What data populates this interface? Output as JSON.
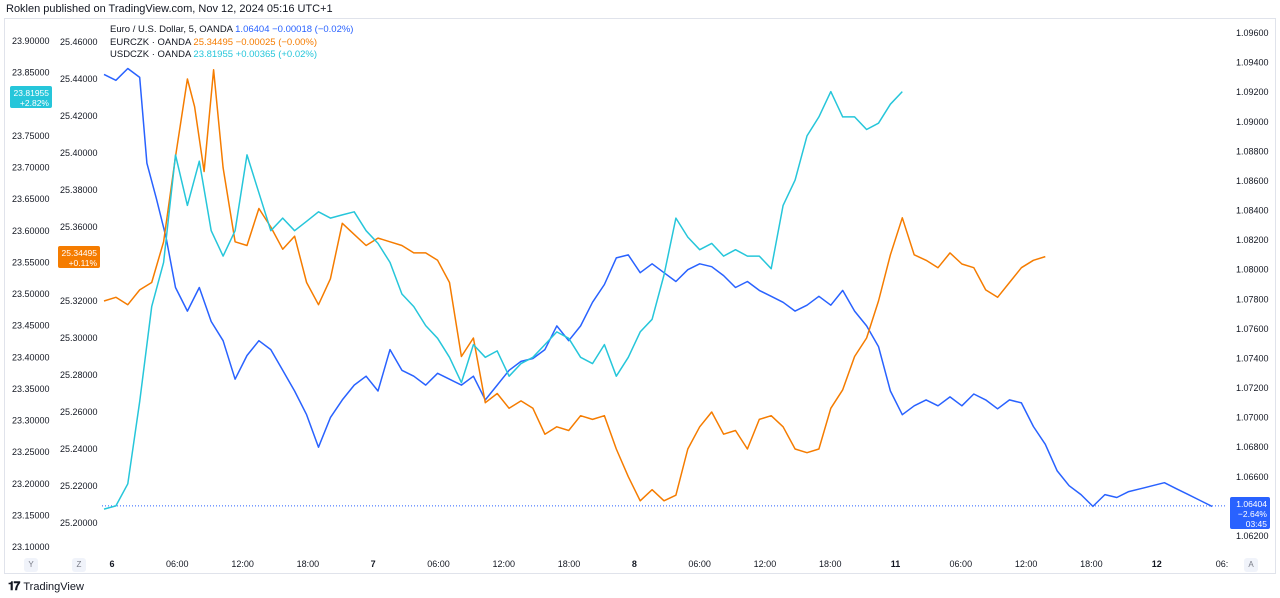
{
  "header": {
    "published": "Roklen published on TradingView.com, Nov 12, 2024 05:16 UTC+1"
  },
  "legend": [
    {
      "name": "Euro / U.S. Dollar, 5, OANDA",
      "last": "1.06404",
      "change": "−0.00018 (−0.02%)",
      "color": "#2962ff"
    },
    {
      "name": "EURCZK · OANDA",
      "last": "25.34495",
      "change": "−0.00025 (−0.00%)",
      "color": "#f57c00"
    },
    {
      "name": "USDCZK · OANDA",
      "last": "23.81955",
      "change": "+0.00365 (+0.02%)",
      "color": "#26c6da"
    }
  ],
  "footer": {
    "logo": "𝟏𝟕",
    "brand": "TradingView"
  },
  "corner_buttons": {
    "left_y": "Y",
    "left_z": "Z",
    "right_a": "A"
  },
  "chart_data": {
    "type": "line",
    "x_tick_labels": [
      "6",
      "06:00",
      "12:00",
      "18:00",
      "7",
      "06:00",
      "12:00",
      "18:00",
      "8",
      "06:00",
      "12:00",
      "18:00",
      "11",
      "06:00",
      "12:00",
      "18:00",
      "12",
      "06:"
    ],
    "axes": {
      "usdczk_scale": {
        "ticks": [
          "23.90000",
          "23.85000",
          "23.80000",
          "23.75000",
          "23.70000",
          "23.65000",
          "23.60000",
          "23.55000",
          "23.50000",
          "23.45000",
          "23.40000",
          "23.35000",
          "23.30000",
          "23.25000",
          "23.20000",
          "23.15000",
          "23.10000"
        ],
        "range": [
          23.1,
          23.9
        ]
      },
      "eurczk_scale": {
        "ticks": [
          "25.46000",
          "25.44000",
          "25.42000",
          "25.40000",
          "25.38000",
          "25.36000",
          "25.34000",
          "25.32000",
          "25.30000",
          "25.28000",
          "25.26000",
          "25.24000",
          "25.22000",
          "25.20000"
        ],
        "range": [
          25.2,
          25.46
        ]
      },
      "eurusd_scale": {
        "ticks": [
          "1.09600",
          "1.09400",
          "1.09200",
          "1.09000",
          "1.08800",
          "1.08600",
          "1.08400",
          "1.08200",
          "1.08000",
          "1.07800",
          "1.07600",
          "1.07400",
          "1.07200",
          "1.07000",
          "1.06800",
          "1.06600",
          "1.06400",
          "1.06200"
        ],
        "range": [
          1.062,
          1.096
        ]
      }
    },
    "price_labels": {
      "usdczk": {
        "value": "23.81955",
        "change": "+2.82%"
      },
      "eurczk": {
        "value": "25.34495",
        "change": "+0.11%"
      },
      "eurusd": {
        "value": "1.06404",
        "change": "−2.64%",
        "countdown": "03:45"
      }
    },
    "series": [
      {
        "name": "EUR/USD",
        "scale": "eurusd_scale",
        "color": "#2962ff",
        "points": [
          [
            0,
            1.0932
          ],
          [
            0.5,
            1.0928
          ],
          [
            1,
            1.0936
          ],
          [
            1.5,
            1.093
          ],
          [
            1.8,
            1.0872
          ],
          [
            2.2,
            1.0848
          ],
          [
            2.6,
            1.0822
          ],
          [
            3,
            1.0788
          ],
          [
            3.5,
            1.0772
          ],
          [
            4,
            1.0788
          ],
          [
            4.5,
            1.0765
          ],
          [
            5,
            1.0752
          ],
          [
            5.5,
            1.0726
          ],
          [
            6,
            1.0742
          ],
          [
            6.5,
            1.0752
          ],
          [
            7,
            1.0746
          ],
          [
            7.5,
            1.0732
          ],
          [
            8,
            1.0718
          ],
          [
            8.5,
            1.0702
          ],
          [
            9,
            1.068
          ],
          [
            9.5,
            1.07
          ],
          [
            10,
            1.0712
          ],
          [
            10.5,
            1.0722
          ],
          [
            11,
            1.0728
          ],
          [
            11.5,
            1.0718
          ],
          [
            12,
            1.0746
          ],
          [
            12.5,
            1.0732
          ],
          [
            13,
            1.0728
          ],
          [
            13.5,
            1.0722
          ],
          [
            14,
            1.073
          ],
          [
            14.5,
            1.0726
          ],
          [
            15,
            1.0722
          ],
          [
            15.5,
            1.0728
          ],
          [
            16,
            1.0712
          ],
          [
            16.5,
            1.0722
          ],
          [
            17,
            1.0732
          ],
          [
            17.5,
            1.0738
          ],
          [
            18,
            1.074
          ],
          [
            18.5,
            1.0746
          ],
          [
            19,
            1.0762
          ],
          [
            19.5,
            1.0752
          ],
          [
            20,
            1.0762
          ],
          [
            20.5,
            1.0778
          ],
          [
            21,
            1.079
          ],
          [
            21.5,
            1.0808
          ],
          [
            22,
            1.081
          ],
          [
            22.5,
            1.0798
          ],
          [
            23,
            1.0804
          ],
          [
            23.5,
            1.0798
          ],
          [
            24,
            1.0792
          ],
          [
            24.5,
            1.08
          ],
          [
            25,
            1.0804
          ],
          [
            25.5,
            1.0802
          ],
          [
            26,
            1.0796
          ],
          [
            26.5,
            1.0788
          ],
          [
            27,
            1.0792
          ],
          [
            27.5,
            1.0786
          ],
          [
            28,
            1.0782
          ],
          [
            28.5,
            1.0778
          ],
          [
            29,
            1.0772
          ],
          [
            29.5,
            1.0776
          ],
          [
            30,
            1.0782
          ],
          [
            30.5,
            1.0776
          ],
          [
            31,
            1.0786
          ],
          [
            31.5,
            1.0772
          ],
          [
            32,
            1.0762
          ],
          [
            32.5,
            1.0748
          ],
          [
            33,
            1.0718
          ],
          [
            33.5,
            1.0702
          ],
          [
            34,
            1.0708
          ],
          [
            34.5,
            1.0712
          ],
          [
            35,
            1.0708
          ],
          [
            35.5,
            1.0714
          ],
          [
            36,
            1.0708
          ],
          [
            36.5,
            1.0716
          ],
          [
            37,
            1.0712
          ],
          [
            37.5,
            1.0706
          ],
          [
            38,
            1.0712
          ],
          [
            38.5,
            1.071
          ],
          [
            39,
            1.0694
          ],
          [
            39.5,
            1.0682
          ],
          [
            40,
            1.0664
          ],
          [
            40.5,
            1.0654
          ],
          [
            41,
            1.0648
          ],
          [
            41.5,
            1.064
          ],
          [
            42,
            1.0648
          ],
          [
            42.5,
            1.0646
          ],
          [
            43,
            1.065
          ],
          [
            43.5,
            1.0652
          ],
          [
            44,
            1.0654
          ],
          [
            44.5,
            1.0656
          ],
          [
            45,
            1.0652
          ],
          [
            45.5,
            1.0648
          ],
          [
            46,
            1.0644
          ],
          [
            46.5,
            1.064
          ]
        ]
      },
      {
        "name": "EURCZK",
        "scale": "eurczk_scale",
        "color": "#f57c00",
        "points": [
          [
            0,
            25.32
          ],
          [
            0.5,
            25.322
          ],
          [
            1,
            25.318
          ],
          [
            1.5,
            25.326
          ],
          [
            2,
            25.33
          ],
          [
            2.5,
            25.352
          ],
          [
            3,
            25.398
          ],
          [
            3.5,
            25.44
          ],
          [
            3.8,
            25.425
          ],
          [
            4.2,
            25.39
          ],
          [
            4.6,
            25.445
          ],
          [
            5,
            25.392
          ],
          [
            5.5,
            25.352
          ],
          [
            6,
            25.35
          ],
          [
            6.5,
            25.37
          ],
          [
            7,
            25.36
          ],
          [
            7.5,
            25.348
          ],
          [
            8,
            25.355
          ],
          [
            8.5,
            25.33
          ],
          [
            9,
            25.318
          ],
          [
            9.5,
            25.332
          ],
          [
            10,
            25.362
          ],
          [
            10.5,
            25.356
          ],
          [
            11,
            25.35
          ],
          [
            11.5,
            25.354
          ],
          [
            12,
            25.352
          ],
          [
            12.5,
            25.35
          ],
          [
            13,
            25.346
          ],
          [
            13.5,
            25.346
          ],
          [
            14,
            25.342
          ],
          [
            14.5,
            25.33
          ],
          [
            15,
            25.29
          ],
          [
            15.5,
            25.3
          ],
          [
            16,
            25.265
          ],
          [
            16.5,
            25.27
          ],
          [
            17,
            25.262
          ],
          [
            17.5,
            25.266
          ],
          [
            18,
            25.262
          ],
          [
            18.5,
            25.248
          ],
          [
            19,
            25.252
          ],
          [
            19.5,
            25.25
          ],
          [
            20,
            25.258
          ],
          [
            20.5,
            25.256
          ],
          [
            21,
            25.258
          ],
          [
            21.5,
            25.24
          ],
          [
            22,
            25.225
          ],
          [
            22.5,
            25.212
          ],
          [
            23,
            25.218
          ],
          [
            23.5,
            25.212
          ],
          [
            24,
            25.215
          ],
          [
            24.5,
            25.24
          ],
          [
            25,
            25.252
          ],
          [
            25.5,
            25.26
          ],
          [
            26,
            25.248
          ],
          [
            26.5,
            25.25
          ],
          [
            27,
            25.24
          ],
          [
            27.5,
            25.256
          ],
          [
            28,
            25.258
          ],
          [
            28.5,
            25.252
          ],
          [
            29,
            25.24
          ],
          [
            29.5,
            25.238
          ],
          [
            30,
            25.24
          ],
          [
            30.5,
            25.262
          ],
          [
            31,
            25.272
          ],
          [
            31.5,
            25.29
          ],
          [
            32,
            25.3
          ],
          [
            32.5,
            25.32
          ],
          [
            33,
            25.345
          ],
          [
            33.5,
            25.365
          ],
          [
            34,
            25.345
          ],
          [
            34.5,
            25.342
          ],
          [
            35,
            25.338
          ],
          [
            35.5,
            25.346
          ],
          [
            36,
            25.34
          ],
          [
            36.5,
            25.338
          ],
          [
            37,
            25.326
          ],
          [
            37.5,
            25.322
          ],
          [
            38,
            25.33
          ],
          [
            38.5,
            25.338
          ],
          [
            39,
            25.342
          ],
          [
            39.5,
            25.344
          ]
        ]
      },
      {
        "name": "USDCZK",
        "scale": "usdczk_scale",
        "color": "#26c6da",
        "points": [
          [
            0,
            23.16
          ],
          [
            0.5,
            23.165
          ],
          [
            1,
            23.2
          ],
          [
            1.5,
            23.33
          ],
          [
            2,
            23.48
          ],
          [
            2.5,
            23.55
          ],
          [
            3,
            23.72
          ],
          [
            3.5,
            23.64
          ],
          [
            4,
            23.71
          ],
          [
            4.5,
            23.6
          ],
          [
            5,
            23.56
          ],
          [
            5.5,
            23.6
          ],
          [
            6,
            23.72
          ],
          [
            6.5,
            23.66
          ],
          [
            7,
            23.6
          ],
          [
            7.5,
            23.62
          ],
          [
            8,
            23.6
          ],
          [
            8.5,
            23.615
          ],
          [
            9,
            23.63
          ],
          [
            9.5,
            23.62
          ],
          [
            10,
            23.625
          ],
          [
            10.5,
            23.63
          ],
          [
            11,
            23.6
          ],
          [
            11.5,
            23.58
          ],
          [
            12,
            23.55
          ],
          [
            12.5,
            23.5
          ],
          [
            13,
            23.48
          ],
          [
            13.5,
            23.45
          ],
          [
            14,
            23.43
          ],
          [
            14.5,
            23.4
          ],
          [
            15,
            23.36
          ],
          [
            15.5,
            23.42
          ],
          [
            16,
            23.4
          ],
          [
            16.5,
            23.41
          ],
          [
            17,
            23.37
          ],
          [
            17.5,
            23.39
          ],
          [
            18,
            23.4
          ],
          [
            18.5,
            23.42
          ],
          [
            19,
            23.44
          ],
          [
            19.5,
            23.43
          ],
          [
            20,
            23.4
          ],
          [
            20.5,
            23.39
          ],
          [
            21,
            23.42
          ],
          [
            21.5,
            23.37
          ],
          [
            22,
            23.4
          ],
          [
            22.5,
            23.44
          ],
          [
            23,
            23.46
          ],
          [
            23.5,
            23.53
          ],
          [
            24,
            23.62
          ],
          [
            24.5,
            23.59
          ],
          [
            25,
            23.57
          ],
          [
            25.5,
            23.58
          ],
          [
            26,
            23.56
          ],
          [
            26.5,
            23.57
          ],
          [
            27,
            23.56
          ],
          [
            27.5,
            23.56
          ],
          [
            28,
            23.54
          ],
          [
            28.5,
            23.64
          ],
          [
            29,
            23.68
          ],
          [
            29.5,
            23.75
          ],
          [
            30,
            23.78
          ],
          [
            30.5,
            23.82
          ],
          [
            31,
            23.78
          ],
          [
            31.5,
            23.78
          ],
          [
            32,
            23.76
          ],
          [
            32.5,
            23.77
          ],
          [
            33,
            23.8
          ],
          [
            33.5,
            23.82
          ]
        ]
      }
    ]
  }
}
